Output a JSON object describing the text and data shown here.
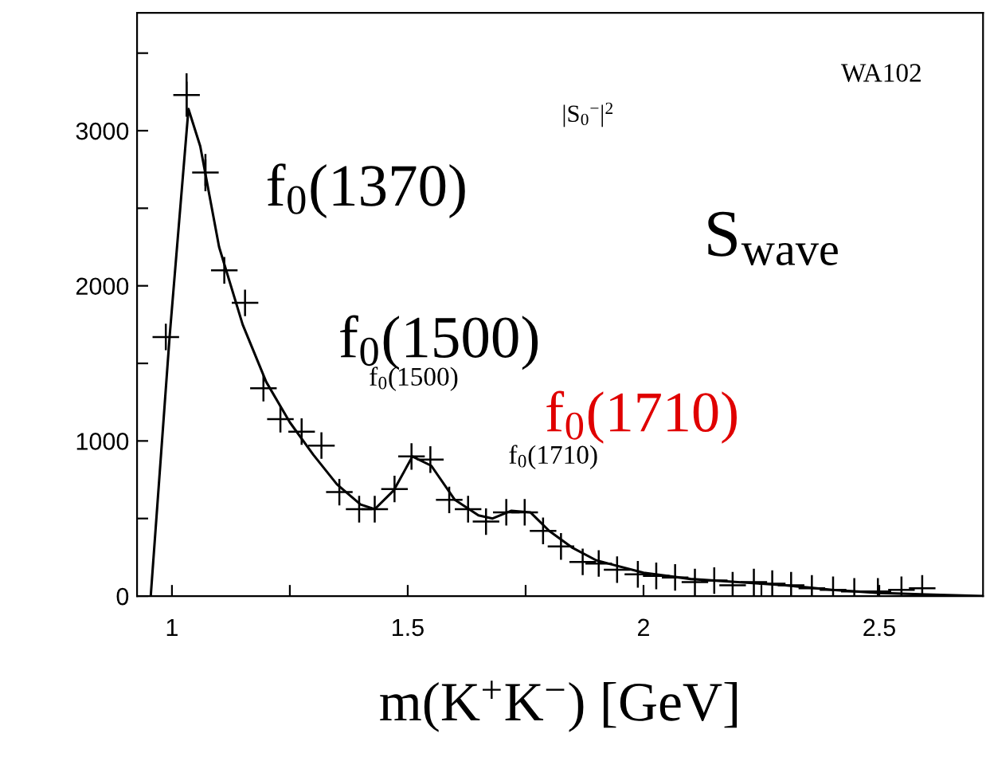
{
  "chart_data": {
    "type": "scatter",
    "xlabel": "m(K$^{+}$K$^{−}$) [GeV]",
    "xlim": [
      0.926,
      2.72
    ],
    "ylim": [
      0,
      3760
    ],
    "xticks": [
      1,
      {
        "value": 1.25,
        "label": null
      },
      1.5,
      {
        "value": 1.75,
        "label": null
      },
      2,
      {
        "value": 2.25,
        "label": null
      },
      2.5
    ],
    "yticks": [
      0,
      {
        "value": 500,
        "label": null
      },
      1000,
      {
        "value": 1500,
        "label": null
      },
      2000,
      {
        "value": 2500,
        "label": null
      },
      3000,
      {
        "value": 3500,
        "label": null
      }
    ],
    "grid": false,
    "annotations": [
      "WA102",
      "|S$_{0}$$^{−}$|$^{2}$",
      "f$_{0}$(1370)",
      "S$_{wave}$",
      "f$_{0}$(1500)",
      "f$_{0}$(1500)",
      "f$_{0}$(1710)",
      "f$_{0}$(1710)"
    ],
    "series": [
      {
        "marker": "cross",
        "color": "#000000",
        "x": [
          0.987,
          1.031,
          1.071,
          1.111,
          1.155,
          1.194,
          1.23,
          1.275,
          1.317,
          1.355,
          1.397,
          1.43,
          1.472,
          1.508,
          1.548,
          1.588,
          1.628,
          1.666,
          1.709,
          1.748,
          1.787,
          1.825,
          1.871,
          1.905,
          1.944,
          1.988,
          2.027,
          2.067,
          2.109,
          2.15,
          2.189,
          2.234,
          2.273,
          2.313,
          2.357,
          2.402,
          2.447,
          2.497,
          2.547,
          2.591
        ],
        "values": [
          1670,
          3230,
          2730,
          2100,
          1890,
          1340,
          1140,
          1060,
          970,
          670,
          560,
          560,
          690,
          900,
          880,
          620,
          560,
          480,
          540,
          540,
          420,
          320,
          220,
          210,
          170,
          140,
          130,
          120,
          90,
          100,
          70,
          90,
          80,
          70,
          50,
          40,
          30,
          30,
          40,
          50
        ],
        "errors": [
          null,
          140,
          120,
          null,
          null,
          null,
          null,
          null,
          null,
          null,
          null,
          null,
          null,
          null,
          null,
          null,
          null,
          null,
          null,
          null,
          null,
          null,
          null,
          null,
          null,
          null,
          null,
          null,
          null,
          null,
          null,
          null,
          null,
          null,
          null,
          null,
          null,
          null,
          null,
          null
        ]
      },
      {
        "type": "line",
        "color": "#000000",
        "line_style": "solid",
        "x": [
          0.955,
          0.995,
          1.035,
          1.06,
          1.1,
          1.15,
          1.2,
          1.25,
          1.3,
          1.35,
          1.4,
          1.43,
          1.47,
          1.51,
          1.55,
          1.6,
          1.65,
          1.68,
          1.72,
          1.76,
          1.8,
          1.85,
          1.9,
          2.0,
          2.1,
          2.2,
          2.3,
          2.4,
          2.5,
          2.6,
          2.72
        ],
        "values": [
          0,
          1670,
          3140,
          2900,
          2250,
          1750,
          1380,
          1120,
          910,
          720,
          590,
          560,
          680,
          900,
          840,
          620,
          520,
          500,
          550,
          540,
          420,
          310,
          230,
          150,
          110,
          90,
          70,
          40,
          20,
          10,
          0
        ]
      }
    ]
  }
}
